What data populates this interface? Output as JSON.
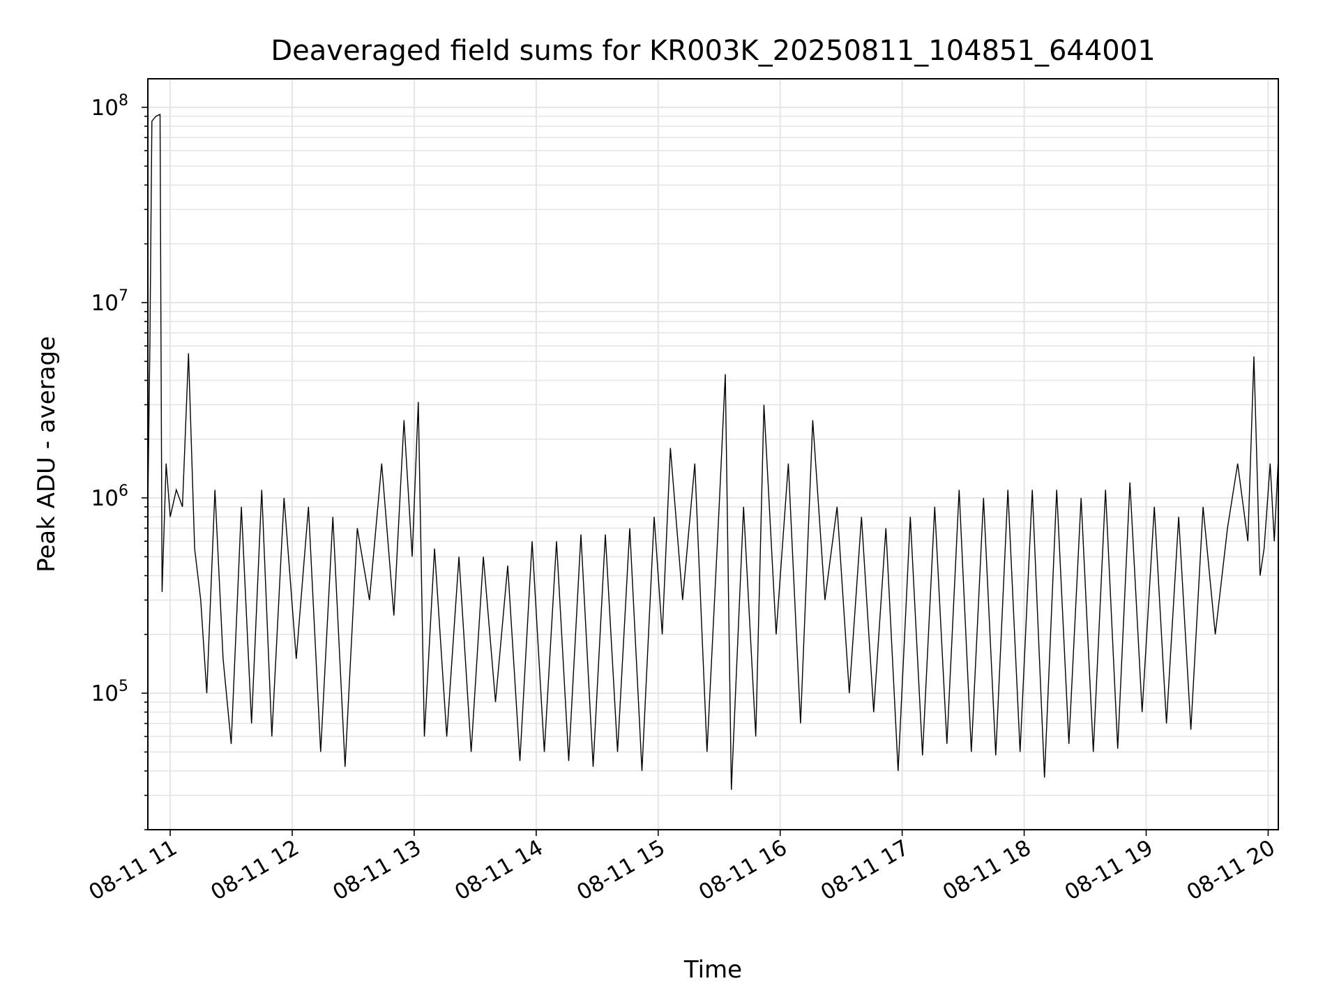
{
  "chart_data": {
    "type": "line",
    "title": "Deaveraged field sums for KR003K_20250811_104851_644001",
    "xlabel": "Time",
    "ylabel": "Peak ADU - average",
    "yscale": "log",
    "ylim": [
      20000,
      140000000
    ],
    "xlim": [
      "2025-08-11 10:49",
      "2025-08-11 20:05"
    ],
    "grid": true,
    "line_color": "#000000",
    "grid_color": "#e5e5e5",
    "x_ticks": [
      "08-11 11",
      "08-11 12",
      "08-11 13",
      "08-11 14",
      "08-11 15",
      "08-11 16",
      "08-11 17",
      "08-11 18",
      "08-11 19",
      "08-11 20"
    ],
    "y_ticks": [
      {
        "base": "10",
        "exp": "5",
        "value": 100000
      },
      {
        "base": "10",
        "exp": "6",
        "value": 1000000
      },
      {
        "base": "10",
        "exp": "7",
        "value": 10000000
      },
      {
        "base": "10",
        "exp": "8",
        "value": 100000000
      }
    ],
    "series": [
      {
        "points": [
          [
            "2025-08-11 10:49",
            900000
          ],
          [
            "2025-08-11 10:50",
            6000000
          ],
          [
            "2025-08-11 10:51",
            85000000
          ],
          [
            "2025-08-11 10:53",
            90000000
          ],
          [
            "2025-08-11 10:55",
            92000000
          ],
          [
            "2025-08-11 10:56",
            330000
          ],
          [
            "2025-08-11 10:58",
            1500000
          ],
          [
            "2025-08-11 11:00",
            800000
          ],
          [
            "2025-08-11 11:03",
            1100000
          ],
          [
            "2025-08-11 11:06",
            900000
          ],
          [
            "2025-08-11 11:09",
            5500000
          ],
          [
            "2025-08-11 11:12",
            550000
          ],
          [
            "2025-08-11 11:15",
            300000
          ],
          [
            "2025-08-11 11:18",
            100000
          ],
          [
            "2025-08-11 11:22",
            1100000
          ],
          [
            "2025-08-11 11:26",
            150000
          ],
          [
            "2025-08-11 11:30",
            55000
          ],
          [
            "2025-08-11 11:35",
            900000
          ],
          [
            "2025-08-11 11:40",
            70000
          ],
          [
            "2025-08-11 11:45",
            1100000
          ],
          [
            "2025-08-11 11:50",
            60000
          ],
          [
            "2025-08-11 11:56",
            1000000
          ],
          [
            "2025-08-11 12:02",
            150000
          ],
          [
            "2025-08-11 12:08",
            900000
          ],
          [
            "2025-08-11 12:14",
            50000
          ],
          [
            "2025-08-11 12:20",
            800000
          ],
          [
            "2025-08-11 12:26",
            42000
          ],
          [
            "2025-08-11 12:32",
            700000
          ],
          [
            "2025-08-11 12:38",
            300000
          ],
          [
            "2025-08-11 12:44",
            1500000
          ],
          [
            "2025-08-11 12:50",
            250000
          ],
          [
            "2025-08-11 12:55",
            2500000
          ],
          [
            "2025-08-11 12:59",
            500000
          ],
          [
            "2025-08-11 13:02",
            3100000
          ],
          [
            "2025-08-11 13:05",
            60000
          ],
          [
            "2025-08-11 13:10",
            550000
          ],
          [
            "2025-08-11 13:16",
            60000
          ],
          [
            "2025-08-11 13:22",
            500000
          ],
          [
            "2025-08-11 13:28",
            50000
          ],
          [
            "2025-08-11 13:34",
            500000
          ],
          [
            "2025-08-11 13:40",
            90000
          ],
          [
            "2025-08-11 13:46",
            450000
          ],
          [
            "2025-08-11 13:52",
            45000
          ],
          [
            "2025-08-11 13:58",
            600000
          ],
          [
            "2025-08-11 14:04",
            50000
          ],
          [
            "2025-08-11 14:10",
            600000
          ],
          [
            "2025-08-11 14:16",
            45000
          ],
          [
            "2025-08-11 14:22",
            650000
          ],
          [
            "2025-08-11 14:28",
            42000
          ],
          [
            "2025-08-11 14:34",
            650000
          ],
          [
            "2025-08-11 14:40",
            50000
          ],
          [
            "2025-08-11 14:46",
            700000
          ],
          [
            "2025-08-11 14:52",
            40000
          ],
          [
            "2025-08-11 14:58",
            800000
          ],
          [
            "2025-08-11 15:02",
            200000
          ],
          [
            "2025-08-11 15:06",
            1800000
          ],
          [
            "2025-08-11 15:12",
            300000
          ],
          [
            "2025-08-11 15:18",
            1500000
          ],
          [
            "2025-08-11 15:24",
            50000
          ],
          [
            "2025-08-11 15:30",
            900000
          ],
          [
            "2025-08-11 15:33",
            4300000
          ],
          [
            "2025-08-11 15:36",
            32000
          ],
          [
            "2025-08-11 15:42",
            900000
          ],
          [
            "2025-08-11 15:48",
            60000
          ],
          [
            "2025-08-11 15:52",
            3000000
          ],
          [
            "2025-08-11 15:58",
            200000
          ],
          [
            "2025-08-11 16:04",
            1500000
          ],
          [
            "2025-08-11 16:10",
            70000
          ],
          [
            "2025-08-11 16:16",
            2500000
          ],
          [
            "2025-08-11 16:22",
            300000
          ],
          [
            "2025-08-11 16:28",
            900000
          ],
          [
            "2025-08-11 16:34",
            100000
          ],
          [
            "2025-08-11 16:40",
            800000
          ],
          [
            "2025-08-11 16:46",
            80000
          ],
          [
            "2025-08-11 16:52",
            700000
          ],
          [
            "2025-08-11 16:58",
            40000
          ],
          [
            "2025-08-11 17:04",
            800000
          ],
          [
            "2025-08-11 17:10",
            48000
          ],
          [
            "2025-08-11 17:16",
            900000
          ],
          [
            "2025-08-11 17:22",
            55000
          ],
          [
            "2025-08-11 17:28",
            1100000
          ],
          [
            "2025-08-11 17:34",
            50000
          ],
          [
            "2025-08-11 17:40",
            1000000
          ],
          [
            "2025-08-11 17:46",
            48000
          ],
          [
            "2025-08-11 17:52",
            1100000
          ],
          [
            "2025-08-11 17:58",
            50000
          ],
          [
            "2025-08-11 18:04",
            1100000
          ],
          [
            "2025-08-11 18:10",
            37000
          ],
          [
            "2025-08-11 18:16",
            1100000
          ],
          [
            "2025-08-11 18:22",
            55000
          ],
          [
            "2025-08-11 18:28",
            1000000
          ],
          [
            "2025-08-11 18:34",
            50000
          ],
          [
            "2025-08-11 18:40",
            1100000
          ],
          [
            "2025-08-11 18:46",
            52000
          ],
          [
            "2025-08-11 18:52",
            1200000
          ],
          [
            "2025-08-11 18:58",
            80000
          ],
          [
            "2025-08-11 19:04",
            900000
          ],
          [
            "2025-08-11 19:10",
            70000
          ],
          [
            "2025-08-11 19:16",
            800000
          ],
          [
            "2025-08-11 19:22",
            65000
          ],
          [
            "2025-08-11 19:28",
            900000
          ],
          [
            "2025-08-11 19:34",
            200000
          ],
          [
            "2025-08-11 19:40",
            700000
          ],
          [
            "2025-08-11 19:45",
            1500000
          ],
          [
            "2025-08-11 19:50",
            600000
          ],
          [
            "2025-08-11 19:53",
            5300000
          ],
          [
            "2025-08-11 19:56",
            400000
          ],
          [
            "2025-08-11 19:58",
            550000
          ],
          [
            "2025-08-11 20:01",
            1500000
          ],
          [
            "2025-08-11 20:03",
            600000
          ],
          [
            "2025-08-11 20:05",
            1600000
          ]
        ]
      }
    ]
  }
}
